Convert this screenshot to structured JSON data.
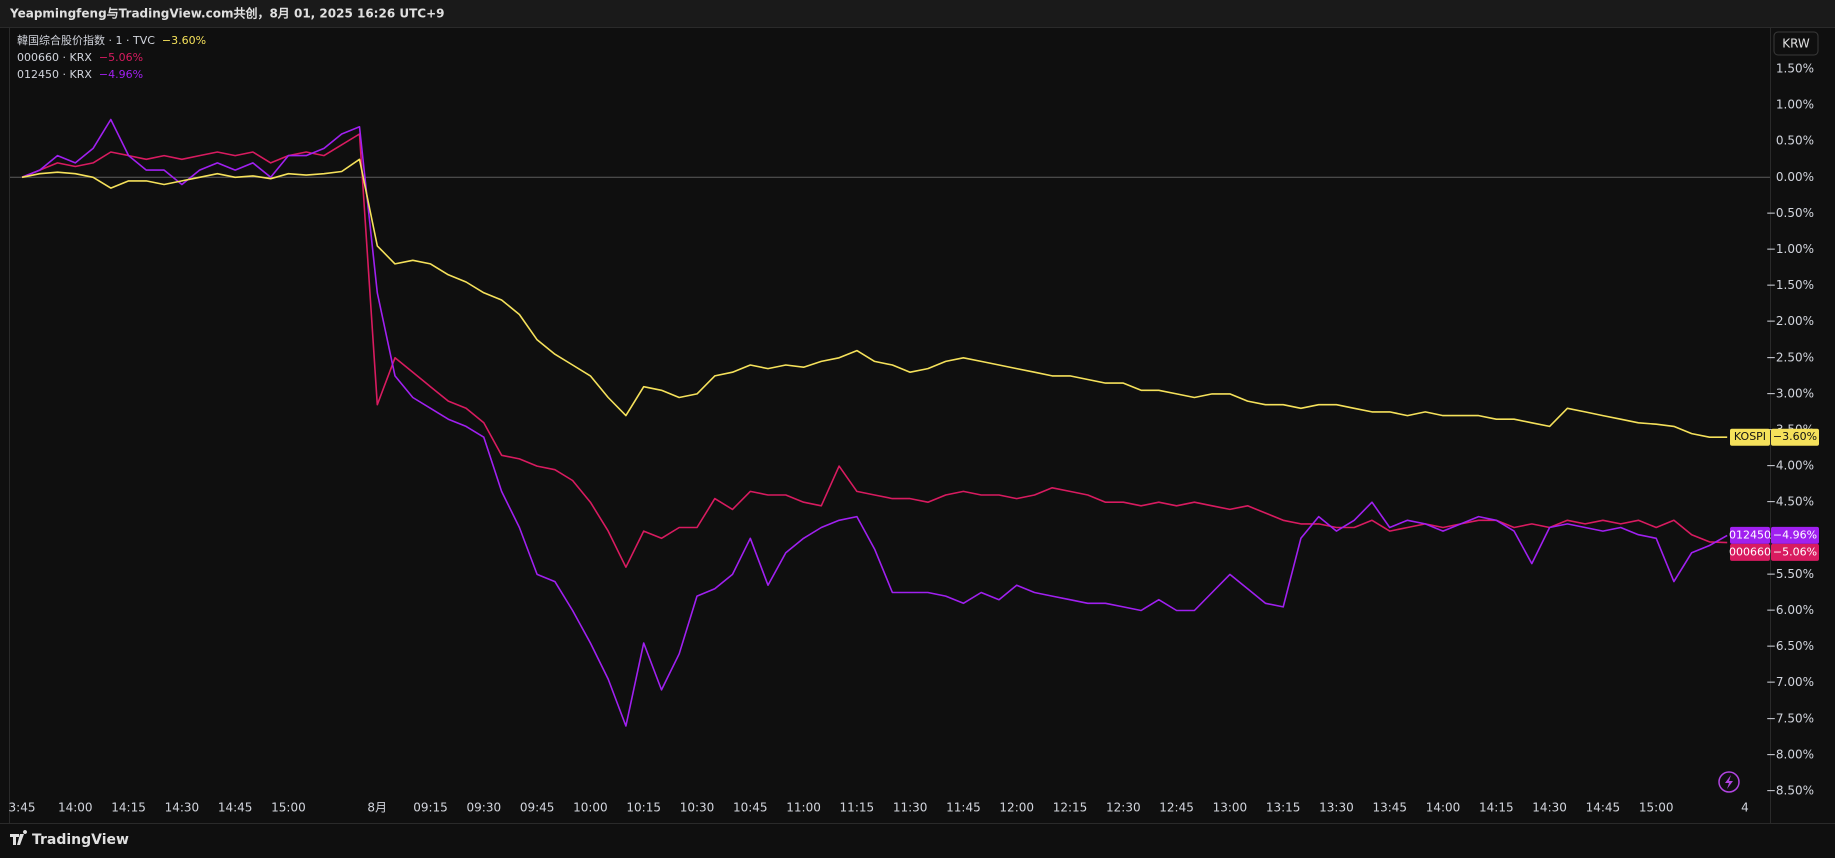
{
  "chart_data": {
    "type": "line",
    "title": "Yeapmingfeng与TradingView.com共创，8月 01, 2025 16:26 UTC+9",
    "currency": "KRW",
    "brand": "TradingView",
    "categories": [
      "3:45",
      null,
      null,
      "14:00",
      null,
      null,
      "14:15",
      null,
      null,
      "14:30",
      null,
      null,
      "14:45",
      null,
      null,
      "15:00",
      null,
      null,
      null,
      null,
      "8月",
      null,
      null,
      "09:15",
      null,
      null,
      "09:30",
      null,
      null,
      "09:45",
      null,
      null,
      "10:00",
      null,
      null,
      "10:15",
      null,
      null,
      "10:30",
      null,
      null,
      "10:45",
      null,
      null,
      "11:00",
      null,
      null,
      "11:15",
      null,
      null,
      "11:30",
      null,
      null,
      "11:45",
      null,
      null,
      "12:00",
      null,
      null,
      "12:15",
      null,
      null,
      "12:30",
      null,
      null,
      "12:45",
      null,
      null,
      "13:00",
      null,
      null,
      "13:15",
      null,
      null,
      "13:30",
      null,
      null,
      "13:45",
      null,
      null,
      "14:00",
      null,
      null,
      "14:15",
      null,
      null,
      "14:30",
      null,
      null,
      "14:45",
      null,
      null,
      "15:00",
      null,
      null,
      null,
      null,
      "4"
    ],
    "series": [
      {
        "name": "韓国综合股价指数 · 1 · TVC",
        "symbol": "KOSPI",
        "color": "#f5e15b",
        "values": [
          0.0,
          0.05,
          0.07,
          0.05,
          0.0,
          -0.15,
          -0.05,
          -0.05,
          -0.1,
          -0.05,
          0.0,
          0.05,
          0.0,
          0.02,
          -0.02,
          0.05,
          0.03,
          0.05,
          0.08,
          0.25,
          -0.95,
          -1.2,
          -1.15,
          -1.2,
          -1.35,
          -1.45,
          -1.6,
          -1.7,
          -1.9,
          -2.25,
          -2.45,
          -2.6,
          -2.75,
          -3.05,
          -3.3,
          -2.9,
          -2.95,
          -3.05,
          -3.0,
          -2.75,
          -2.7,
          -2.6,
          -2.65,
          -2.6,
          -2.63,
          -2.55,
          -2.5,
          -2.4,
          -2.55,
          -2.6,
          -2.7,
          -2.65,
          -2.55,
          -2.5,
          -2.55,
          -2.6,
          -2.65,
          -2.7,
          -2.75,
          -2.75,
          -2.8,
          -2.85,
          -2.85,
          -2.95,
          -2.95,
          -3.0,
          -3.05,
          -3.0,
          -3.0,
          -3.1,
          -3.15,
          -3.15,
          -3.2,
          -3.15,
          -3.15,
          -3.2,
          -3.25,
          -3.25,
          -3.3,
          -3.25,
          -3.3,
          -3.3,
          -3.3,
          -3.35,
          -3.35,
          -3.4,
          -3.45,
          -3.2,
          -3.25,
          -3.3,
          -3.35,
          -3.4,
          -3.42,
          -3.45,
          -3.55,
          -3.6,
          -3.6,
          null
        ],
        "value_labels": [
          null,
          null,
          null,
          null,
          null,
          null,
          null,
          null,
          null,
          null,
          null,
          null,
          null,
          null,
          null,
          null,
          null,
          null,
          null,
          null,
          null,
          null,
          null,
          null,
          null,
          null,
          null,
          null,
          null,
          null,
          null,
          null,
          null,
          null,
          null,
          null,
          null,
          null,
          null,
          null,
          null,
          null,
          null,
          null,
          null,
          null,
          null,
          null,
          null,
          null,
          null,
          null,
          null,
          null,
          null,
          null,
          null,
          null,
          null,
          null,
          null,
          null,
          null,
          null,
          null,
          null,
          null,
          null,
          null,
          null,
          null,
          null,
          null,
          null,
          null,
          null,
          null,
          null,
          null,
          null,
          null,
          null,
          null,
          null,
          null,
          null,
          null,
          null,
          null,
          null,
          null,
          null,
          null,
          null,
          null,
          null,
          "−3.60%",
          null
        ]
      },
      {
        "name": "000660 · KRX",
        "symbol": "000660",
        "color": "#d81b60",
        "values": [
          0.0,
          0.1,
          0.2,
          0.15,
          0.2,
          0.35,
          0.3,
          0.25,
          0.3,
          0.25,
          0.3,
          0.35,
          0.3,
          0.35,
          0.2,
          0.3,
          0.35,
          0.3,
          0.45,
          0.6,
          -3.15,
          -2.5,
          -2.7,
          -2.9,
          -3.1,
          -3.2,
          -3.4,
          -3.85,
          -3.9,
          -4.0,
          -4.05,
          -4.2,
          -4.5,
          -4.9,
          -5.4,
          -4.9,
          -5.0,
          -4.85,
          -4.85,
          -4.45,
          -4.6,
          -4.35,
          -4.4,
          -4.4,
          -4.5,
          -4.55,
          -4.0,
          -4.35,
          -4.4,
          -4.45,
          -4.45,
          -4.5,
          -4.4,
          -4.35,
          -4.4,
          -4.4,
          -4.45,
          -4.4,
          -4.3,
          -4.35,
          -4.4,
          -4.5,
          -4.5,
          -4.55,
          -4.5,
          -4.55,
          -4.5,
          -4.55,
          -4.6,
          -4.55,
          -4.65,
          -4.75,
          -4.8,
          -4.8,
          -4.85,
          -4.85,
          -4.75,
          -4.9,
          -4.85,
          -4.8,
          -4.85,
          -4.8,
          -4.75,
          -4.75,
          -4.85,
          -4.8,
          -4.85,
          -4.75,
          -4.8,
          -4.75,
          -4.8,
          -4.75,
          -4.85,
          -4.75,
          -4.95,
          -5.05,
          -5.06,
          null
        ],
        "value_labels": [
          null,
          null,
          null,
          null,
          null,
          null,
          null,
          null,
          null,
          null,
          null,
          null,
          null,
          null,
          null,
          null,
          null,
          null,
          null,
          null,
          null,
          null,
          null,
          null,
          null,
          null,
          null,
          null,
          null,
          null,
          null,
          null,
          null,
          null,
          null,
          null,
          null,
          null,
          null,
          null,
          null,
          null,
          null,
          null,
          null,
          null,
          null,
          null,
          null,
          null,
          null,
          null,
          null,
          null,
          null,
          null,
          null,
          null,
          null,
          null,
          null,
          null,
          null,
          null,
          null,
          null,
          null,
          null,
          null,
          null,
          null,
          null,
          null,
          null,
          null,
          null,
          null,
          null,
          null,
          null,
          null,
          null,
          null,
          null,
          null,
          null,
          null,
          null,
          null,
          null,
          null,
          null,
          null,
          null,
          null,
          null,
          "−5.06%",
          null
        ]
      },
      {
        "name": "012450 · KRX",
        "symbol": "012450",
        "color": "#a020f0",
        "values": [
          0.0,
          0.1,
          0.3,
          0.2,
          0.4,
          0.8,
          0.3,
          0.1,
          0.1,
          -0.1,
          0.1,
          0.2,
          0.1,
          0.2,
          0.0,
          0.3,
          0.3,
          0.4,
          0.6,
          0.7,
          -1.6,
          -2.75,
          -3.05,
          -3.2,
          -3.35,
          -3.45,
          -3.6,
          -4.35,
          -4.85,
          -5.5,
          -5.6,
          -6.0,
          -6.45,
          -6.95,
          -7.6,
          -6.45,
          -7.1,
          -6.6,
          -5.8,
          -5.7,
          -5.5,
          -5.0,
          -5.65,
          -5.2,
          -5.0,
          -4.85,
          -4.75,
          -4.7,
          -5.15,
          -5.75,
          -5.75,
          -5.75,
          -5.8,
          -5.9,
          -5.75,
          -5.85,
          -5.65,
          -5.75,
          -5.8,
          -5.85,
          -5.9,
          -5.9,
          -5.95,
          -6.0,
          -5.85,
          -6.0,
          -6.0,
          -5.75,
          -5.5,
          -5.7,
          -5.9,
          -5.95,
          -5.0,
          -4.7,
          -4.9,
          -4.75,
          -4.5,
          -4.85,
          -4.75,
          -4.8,
          -4.9,
          -4.8,
          -4.7,
          -4.75,
          -4.9,
          -5.35,
          -4.85,
          -4.8,
          -4.85,
          -4.9,
          -4.85,
          -4.95,
          -5.0,
          -5.6,
          -5.2,
          -5.1,
          -4.96,
          null
        ],
        "value_labels": [
          null,
          null,
          null,
          null,
          null,
          null,
          null,
          null,
          null,
          null,
          null,
          null,
          null,
          null,
          null,
          null,
          null,
          null,
          null,
          null,
          null,
          null,
          null,
          null,
          null,
          null,
          null,
          null,
          null,
          null,
          null,
          null,
          null,
          null,
          null,
          null,
          null,
          null,
          null,
          null,
          null,
          null,
          null,
          null,
          null,
          null,
          null,
          null,
          null,
          null,
          null,
          null,
          null,
          null,
          null,
          null,
          null,
          null,
          null,
          null,
          null,
          null,
          null,
          null,
          null,
          null,
          null,
          null,
          null,
          null,
          null,
          null,
          null,
          null,
          null,
          null,
          null,
          null,
          null,
          null,
          null,
          null,
          null,
          null,
          null,
          null,
          null,
          null,
          null,
          null,
          null,
          null,
          null,
          null,
          null,
          null,
          "−4.96%",
          null
        ]
      }
    ],
    "ylim": [
      -8.5,
      1.5
    ],
    "yticks": [
      {
        "value": 1.5,
        "label": "1.50%"
      },
      {
        "value": 1.0,
        "label": "1.00%"
      },
      {
        "value": 0.5,
        "label": "0.50%"
      },
      {
        "value": 0,
        "label": "0.00%"
      },
      {
        "value": -0.5,
        "label": "−0.50%"
      },
      {
        "value": -1.0,
        "label": "−1.00%"
      },
      {
        "value": -1.5,
        "label": "−1.50%"
      },
      {
        "value": -2.0,
        "label": "−2.00%"
      },
      {
        "value": -2.5,
        "label": "−2.50%"
      },
      {
        "value": -3.0,
        "label": "−3.00%"
      },
      {
        "value": -3.5,
        "label": "−3.50%"
      },
      {
        "value": -4.0,
        "label": "−4.00%"
      },
      {
        "value": -4.5,
        "label": "−4.50%"
      },
      {
        "value": -5.0,
        "label": "−5.00%"
      },
      {
        "value": -5.5,
        "label": "−5.50%"
      },
      {
        "value": -6.0,
        "label": "−6.00%"
      },
      {
        "value": -6.5,
        "label": "−6.50%"
      },
      {
        "value": -7.0,
        "label": "−7.00%"
      },
      {
        "value": -7.5,
        "label": "−7.50%"
      },
      {
        "value": -8.0,
        "label": "−8.00%"
      },
      {
        "value": -8.5,
        "label": "−8.50%"
      }
    ],
    "grid": false
  }
}
